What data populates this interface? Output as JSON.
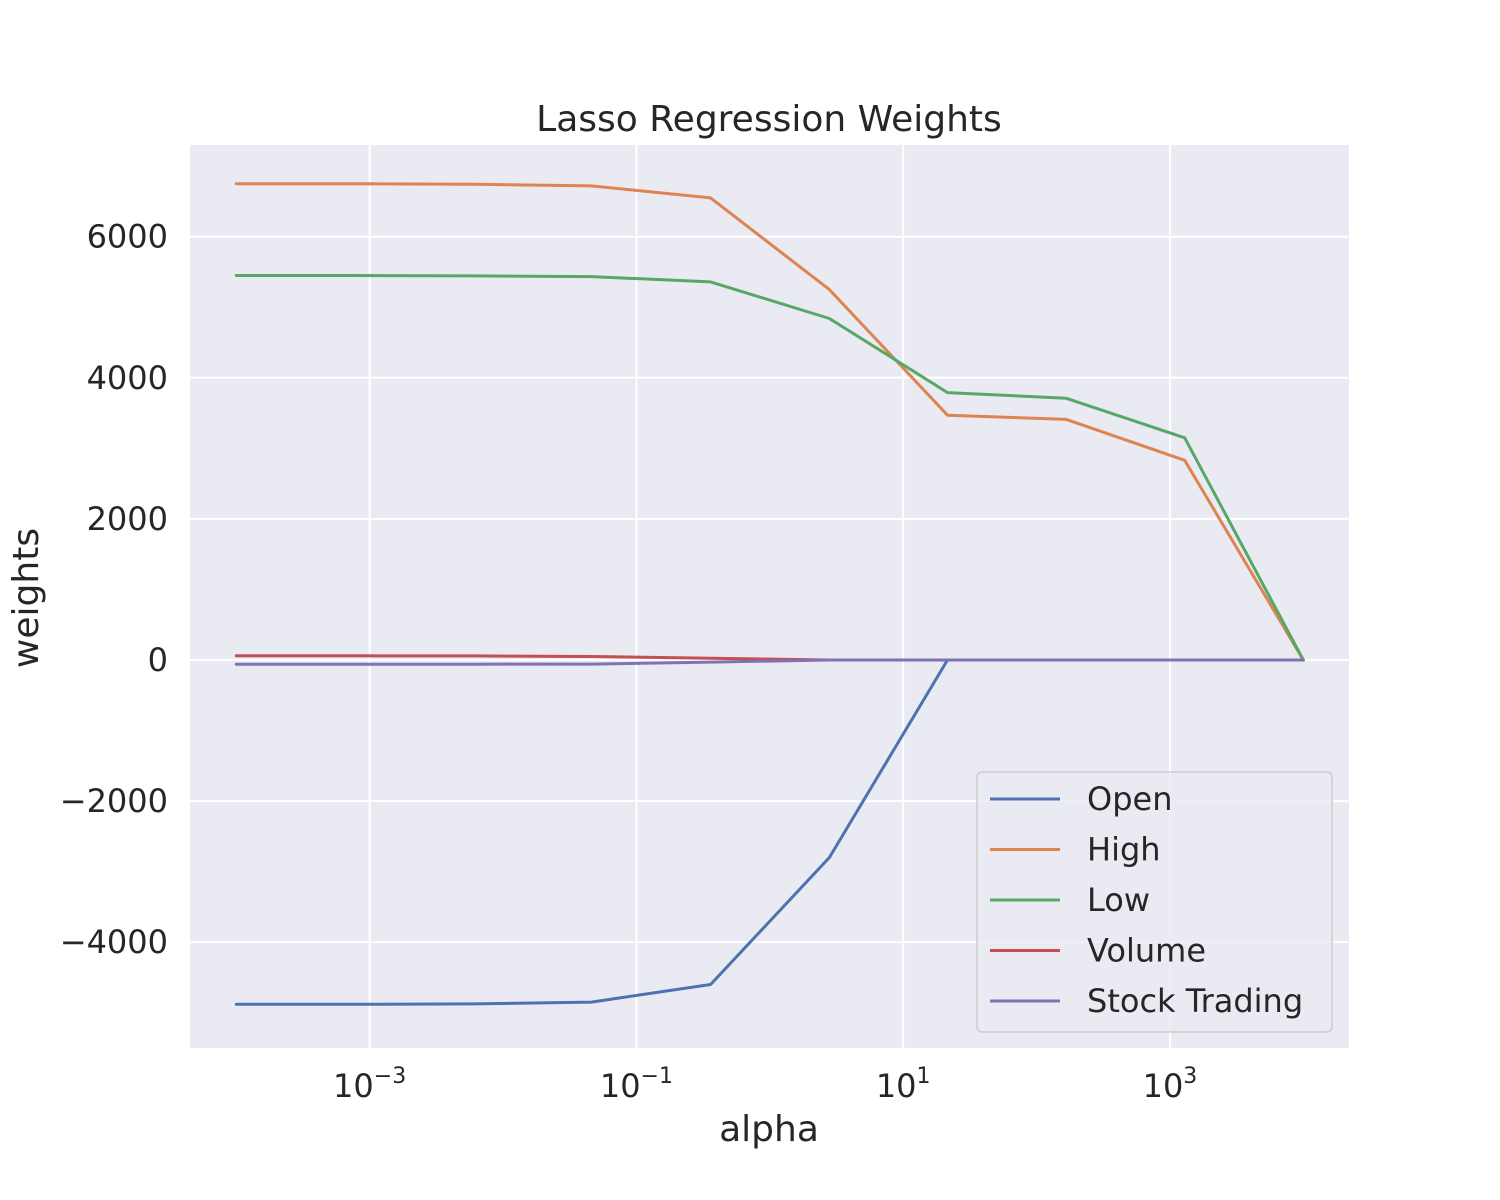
{
  "chart_data": {
    "type": "line",
    "title": "Lasso Regression Weights",
    "xlabel": "alpha",
    "ylabel": "weights",
    "xscale": "log",
    "xlim": [
      4.5e-05,
      22000
    ],
    "ylim": [
      -5500,
      7300
    ],
    "grid": true,
    "legend_position": "lower-right",
    "x": [
      0.0001,
      0.00077,
      0.006,
      0.046,
      0.36,
      2.8,
      21.5,
      167,
      1290,
      10000
    ],
    "series": [
      {
        "name": "Open",
        "color": "#4c72b0",
        "values": [
          -4880,
          -4880,
          -4875,
          -4850,
          -4600,
          -2800,
          0,
          0,
          0,
          0
        ]
      },
      {
        "name": "High",
        "color": "#dd8452",
        "values": [
          6750,
          6750,
          6745,
          6720,
          6550,
          5250,
          3470,
          3410,
          2830,
          0
        ]
      },
      {
        "name": "Low",
        "color": "#55a868",
        "values": [
          5450,
          5450,
          5445,
          5435,
          5360,
          4840,
          3790,
          3710,
          3150,
          0
        ]
      },
      {
        "name": "Volume",
        "color": "#c44e52",
        "values": [
          60,
          60,
          58,
          50,
          25,
          0,
          0,
          0,
          0,
          0
        ]
      },
      {
        "name": "Stock Trading",
        "color": "#8172b3",
        "values": [
          -60,
          -60,
          -60,
          -58,
          -30,
          0,
          0,
          0,
          0,
          0
        ]
      }
    ],
    "x_ticks": [
      {
        "base": "10",
        "exp": "−3",
        "value": 0.001
      },
      {
        "base": "10",
        "exp": "−1",
        "value": 0.1
      },
      {
        "base": "10",
        "exp": "1",
        "value": 10
      },
      {
        "base": "10",
        "exp": "3",
        "value": 1000
      }
    ],
    "y_ticks": [
      {
        "label": "−4000",
        "value": -4000
      },
      {
        "label": "−2000",
        "value": -2000
      },
      {
        "label": "0",
        "value": 0
      },
      {
        "label": "2000",
        "value": 2000
      },
      {
        "label": "4000",
        "value": 4000
      },
      {
        "label": "6000",
        "value": 6000
      }
    ]
  }
}
